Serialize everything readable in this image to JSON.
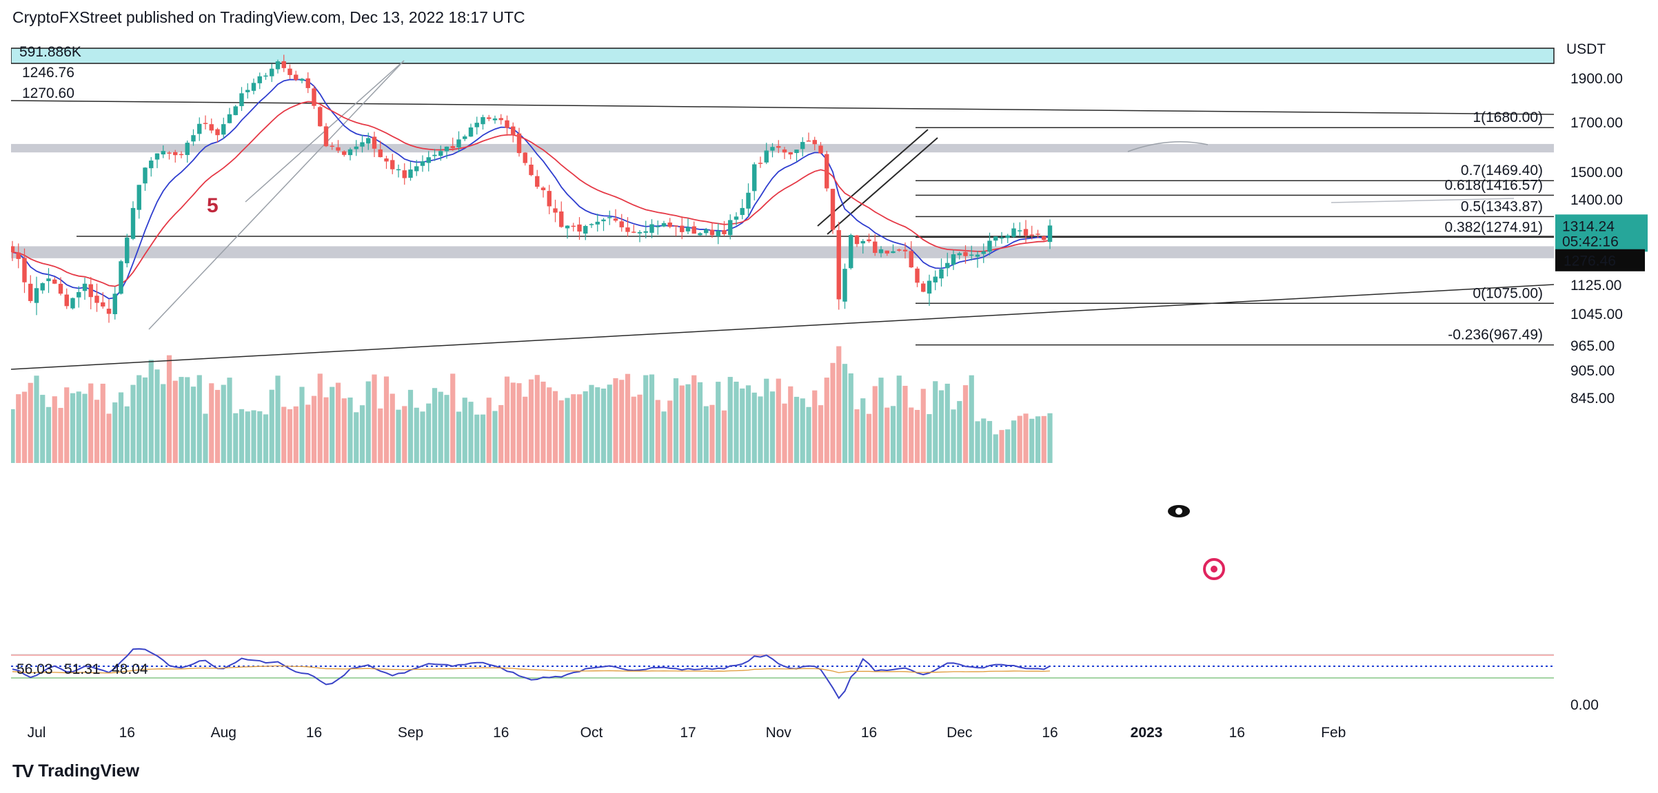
{
  "header": {
    "text": "CryptoFXStreet published on TradingView.com, Dec 13, 2022 18:17 UTC"
  },
  "brand": {
    "name": "TradingView",
    "logo": "TV"
  },
  "legend": {
    "volume": "591.886K",
    "ema_red": "1246.76",
    "ema_blue": "1270.60"
  },
  "axis": {
    "unit": "USDT",
    "price_ticks": [
      {
        "label": "1900.00",
        "v": 1900
      },
      {
        "label": "1700.00",
        "v": 1700
      },
      {
        "label": "1500.00",
        "v": 1500
      },
      {
        "label": "1400.00",
        "v": 1400
      },
      {
        "label": "1200.00",
        "v": 1200
      },
      {
        "label": "1125.00",
        "v": 1125
      },
      {
        "label": "1045.00",
        "v": 1045
      },
      {
        "label": "965.00",
        "v": 965
      },
      {
        "label": "905.00",
        "v": 905
      },
      {
        "label": "845.00",
        "v": 845
      },
      {
        "label": "0.00",
        "v": 0
      }
    ],
    "time_ticks": [
      {
        "label": "Jul",
        "i": 4,
        "bold": false
      },
      {
        "label": "16",
        "i": 19,
        "bold": false
      },
      {
        "label": "Aug",
        "i": 35,
        "bold": false
      },
      {
        "label": "16",
        "i": 50,
        "bold": false
      },
      {
        "label": "Sep",
        "i": 66,
        "bold": false
      },
      {
        "label": "16",
        "i": 81,
        "bold": false
      },
      {
        "label": "Oct",
        "i": 96,
        "bold": false
      },
      {
        "label": "17",
        "i": 112,
        "bold": false
      },
      {
        "label": "Nov",
        "i": 127,
        "bold": false
      },
      {
        "label": "16",
        "i": 142,
        "bold": false
      },
      {
        "label": "Dec",
        "i": 157,
        "bold": false
      },
      {
        "label": "16",
        "i": 172,
        "bold": false
      },
      {
        "label": "2023",
        "i": 188,
        "bold": true
      },
      {
        "label": "16",
        "i": 203,
        "bold": false
      },
      {
        "label": "Feb",
        "i": 219,
        "bold": false
      }
    ]
  },
  "current_price": {
    "price": "1314.24",
    "countdown": "05:42:16",
    "level2": "1276.46"
  },
  "fib_levels": [
    {
      "label": "1(1680.00)",
      "v": 1680
    },
    {
      "label": "0.7(1469.40)",
      "v": 1469.4
    },
    {
      "label": "0.618(1416.57)",
      "v": 1416.57
    },
    {
      "label": "0.5(1343.87)",
      "v": 1343.87
    },
    {
      "label": "0.382(1274.91)",
      "v": 1274.91
    },
    {
      "label": "0(1075.00)",
      "v": 1075
    },
    {
      "label": "-0.236(967.49)",
      "v": 967.49
    }
  ],
  "annotations": {
    "wave_label": "5"
  },
  "indicator": {
    "rsi_values": [
      "56.03",
      "51.31",
      "48.04"
    ]
  },
  "chart_data": {
    "type": "candlestick",
    "symbol_quote": "USDT",
    "period": "Jul 2022 – Dec 13, 2022 (daily)",
    "x": [
      "Jun 28",
      "Dec 13"
    ],
    "ohlc_anchor_points": [
      {
        "date": "Jul 1",
        "close": 1066
      },
      {
        "date": "Jul 13",
        "close": 1040
      },
      {
        "date": "Jul 18",
        "close": 1530
      },
      {
        "date": "Aug 13",
        "close": 1985
      },
      {
        "date": "Aug 20",
        "close": 1580
      },
      {
        "date": "Sep 10",
        "close": 1730
      },
      {
        "date": "Sep 20",
        "close": 1320
      },
      {
        "date": "Oct 12",
        "close": 1290
      },
      {
        "date": "Oct 20",
        "close": 1300
      },
      {
        "date": "Nov 5",
        "close": 1640
      },
      {
        "date": "Nov 9",
        "close": 1100
      },
      {
        "date": "Nov 21",
        "close": 1080
      },
      {
        "date": "Nov 30",
        "close": 1290
      },
      {
        "date": "Dec 13",
        "close": 1314.24
      }
    ],
    "moving_averages": [
      {
        "name": "EMA red",
        "last": 1246.76
      },
      {
        "name": "EMA blue",
        "last": 1270.6
      }
    ],
    "volume_last": "591.886K",
    "ylim": [
      0,
      2130
    ]
  }
}
